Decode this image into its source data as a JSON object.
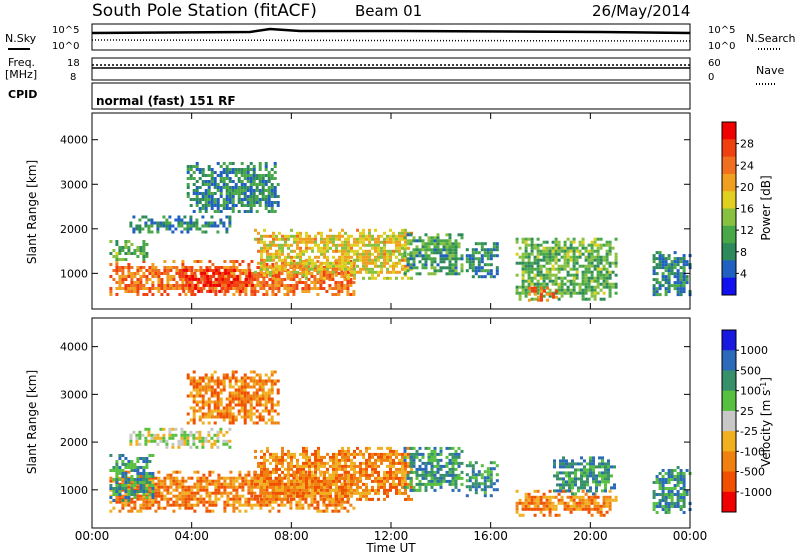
{
  "header": {
    "station": "South Pole Station (fitACF)",
    "beam": "Beam 01",
    "date": "26/May/2014"
  },
  "top_panels": {
    "nsky_label": "N.Sky",
    "nsearch_label": "N.Search",
    "nsky_ticks": [
      "10^5",
      "10^0"
    ],
    "nsearch_ticks": [
      "10^5",
      "10^0"
    ],
    "freq_label": "Freq.",
    "freq_unit": "[MHz]",
    "freq_ticks": [
      "18",
      "8"
    ],
    "nave_label": "Nave",
    "nave_ticks": [
      "60",
      "0"
    ],
    "cpid_label": "CPID",
    "cpid_value": "normal (fast) 151 RF"
  },
  "chart_data": [
    {
      "type": "heatmap",
      "name": "power",
      "ylabel": "Slant Range [km]",
      "ylim": [
        200,
        4600
      ],
      "yticks": [
        1000,
        2000,
        3000,
        4000
      ],
      "xlim_hours": [
        0,
        24
      ],
      "colorbar": {
        "label": "Power [dB]",
        "range": [
          0,
          32
        ],
        "ticks": [
          "4",
          "8",
          "12",
          "16",
          "20",
          "24",
          "28"
        ],
        "colors": [
          "#1010f0",
          "#2060c0",
          "#2e8a5a",
          "#48a848",
          "#88c040",
          "#e0d020",
          "#f0a020",
          "#f07020",
          "#f04010",
          "#f00000"
        ]
      },
      "bands": [
        {
          "t0": 0.7,
          "t1": 10.5,
          "r0": 550,
          "r1": 1300,
          "v": 24
        },
        {
          "t0": 3.5,
          "t1": 6.5,
          "r0": 600,
          "r1": 1100,
          "v": 28
        },
        {
          "t0": 0.7,
          "t1": 2.2,
          "r0": 1300,
          "r1": 1750,
          "v": 12
        },
        {
          "t0": 6.5,
          "t1": 12.8,
          "r0": 900,
          "r1": 2000,
          "v": 18
        },
        {
          "t0": 12.5,
          "t1": 14.8,
          "r0": 1000,
          "r1": 1900,
          "v": 10
        },
        {
          "t0": 15.0,
          "t1": 16.3,
          "r0": 900,
          "r1": 1700,
          "v": 8
        },
        {
          "t0": 17.0,
          "t1": 21.0,
          "r0": 450,
          "r1": 1800,
          "v": 12
        },
        {
          "t0": 17.5,
          "t1": 18.6,
          "r0": 400,
          "r1": 700,
          "v": 24
        },
        {
          "t0": 1.5,
          "t1": 5.5,
          "r0": 1900,
          "r1": 2300,
          "v": 8
        },
        {
          "t0": 3.8,
          "t1": 7.5,
          "r0": 2400,
          "r1": 3500,
          "v": 8
        },
        {
          "t0": 22.5,
          "t1": 24.0,
          "r0": 500,
          "r1": 1500,
          "v": 8
        }
      ]
    },
    {
      "type": "heatmap",
      "name": "velocity",
      "ylabel": "Slant Range [km]",
      "ylim": [
        200,
        4600
      ],
      "yticks": [
        1000,
        2000,
        3000,
        4000
      ],
      "xlim_hours": [
        0,
        24
      ],
      "xticks": [
        "00:00",
        "04:00",
        "08:00",
        "12:00",
        "16:00",
        "20:00",
        "00:00"
      ],
      "xlabel": "Time UT",
      "colorbar": {
        "label": "Velocity [m s-1]",
        "ticks": [
          "1000",
          "500",
          "100",
          "25",
          "-25",
          "-100",
          "-500",
          "-1000"
        ],
        "colors": [
          "#1818e0",
          "#2a6ab8",
          "#38906a",
          "#58c040",
          "#c8c8c8",
          "#f0b020",
          "#f08010",
          "#f05000",
          "#f00000"
        ]
      },
      "bands": [
        {
          "t0": 0.7,
          "t1": 10.5,
          "r0": 550,
          "r1": 1400,
          "v": -100
        },
        {
          "t0": 0.7,
          "t1": 2.5,
          "r0": 800,
          "r1": 1750,
          "v": 100
        },
        {
          "t0": 6.5,
          "t1": 12.8,
          "r0": 800,
          "r1": 1900,
          "v": -100
        },
        {
          "t0": 12.5,
          "t1": 14.8,
          "r0": 1000,
          "r1": 1900,
          "v": 100
        },
        {
          "t0": 15.0,
          "t1": 16.3,
          "r0": 900,
          "r1": 1600,
          "v": 100
        },
        {
          "t0": 17.0,
          "t1": 21.0,
          "r0": 450,
          "r1": 1000,
          "v": -100
        },
        {
          "t0": 18.5,
          "t1": 21.0,
          "r0": 900,
          "r1": 1700,
          "v": 100
        },
        {
          "t0": 1.5,
          "t1": 5.5,
          "r0": 1900,
          "r1": 2300,
          "v": 0
        },
        {
          "t0": 3.8,
          "t1": 7.5,
          "r0": 2400,
          "r1": 3500,
          "v": -100
        },
        {
          "t0": 22.5,
          "t1": 24.0,
          "r0": 500,
          "r1": 1500,
          "v": 100
        }
      ]
    }
  ]
}
